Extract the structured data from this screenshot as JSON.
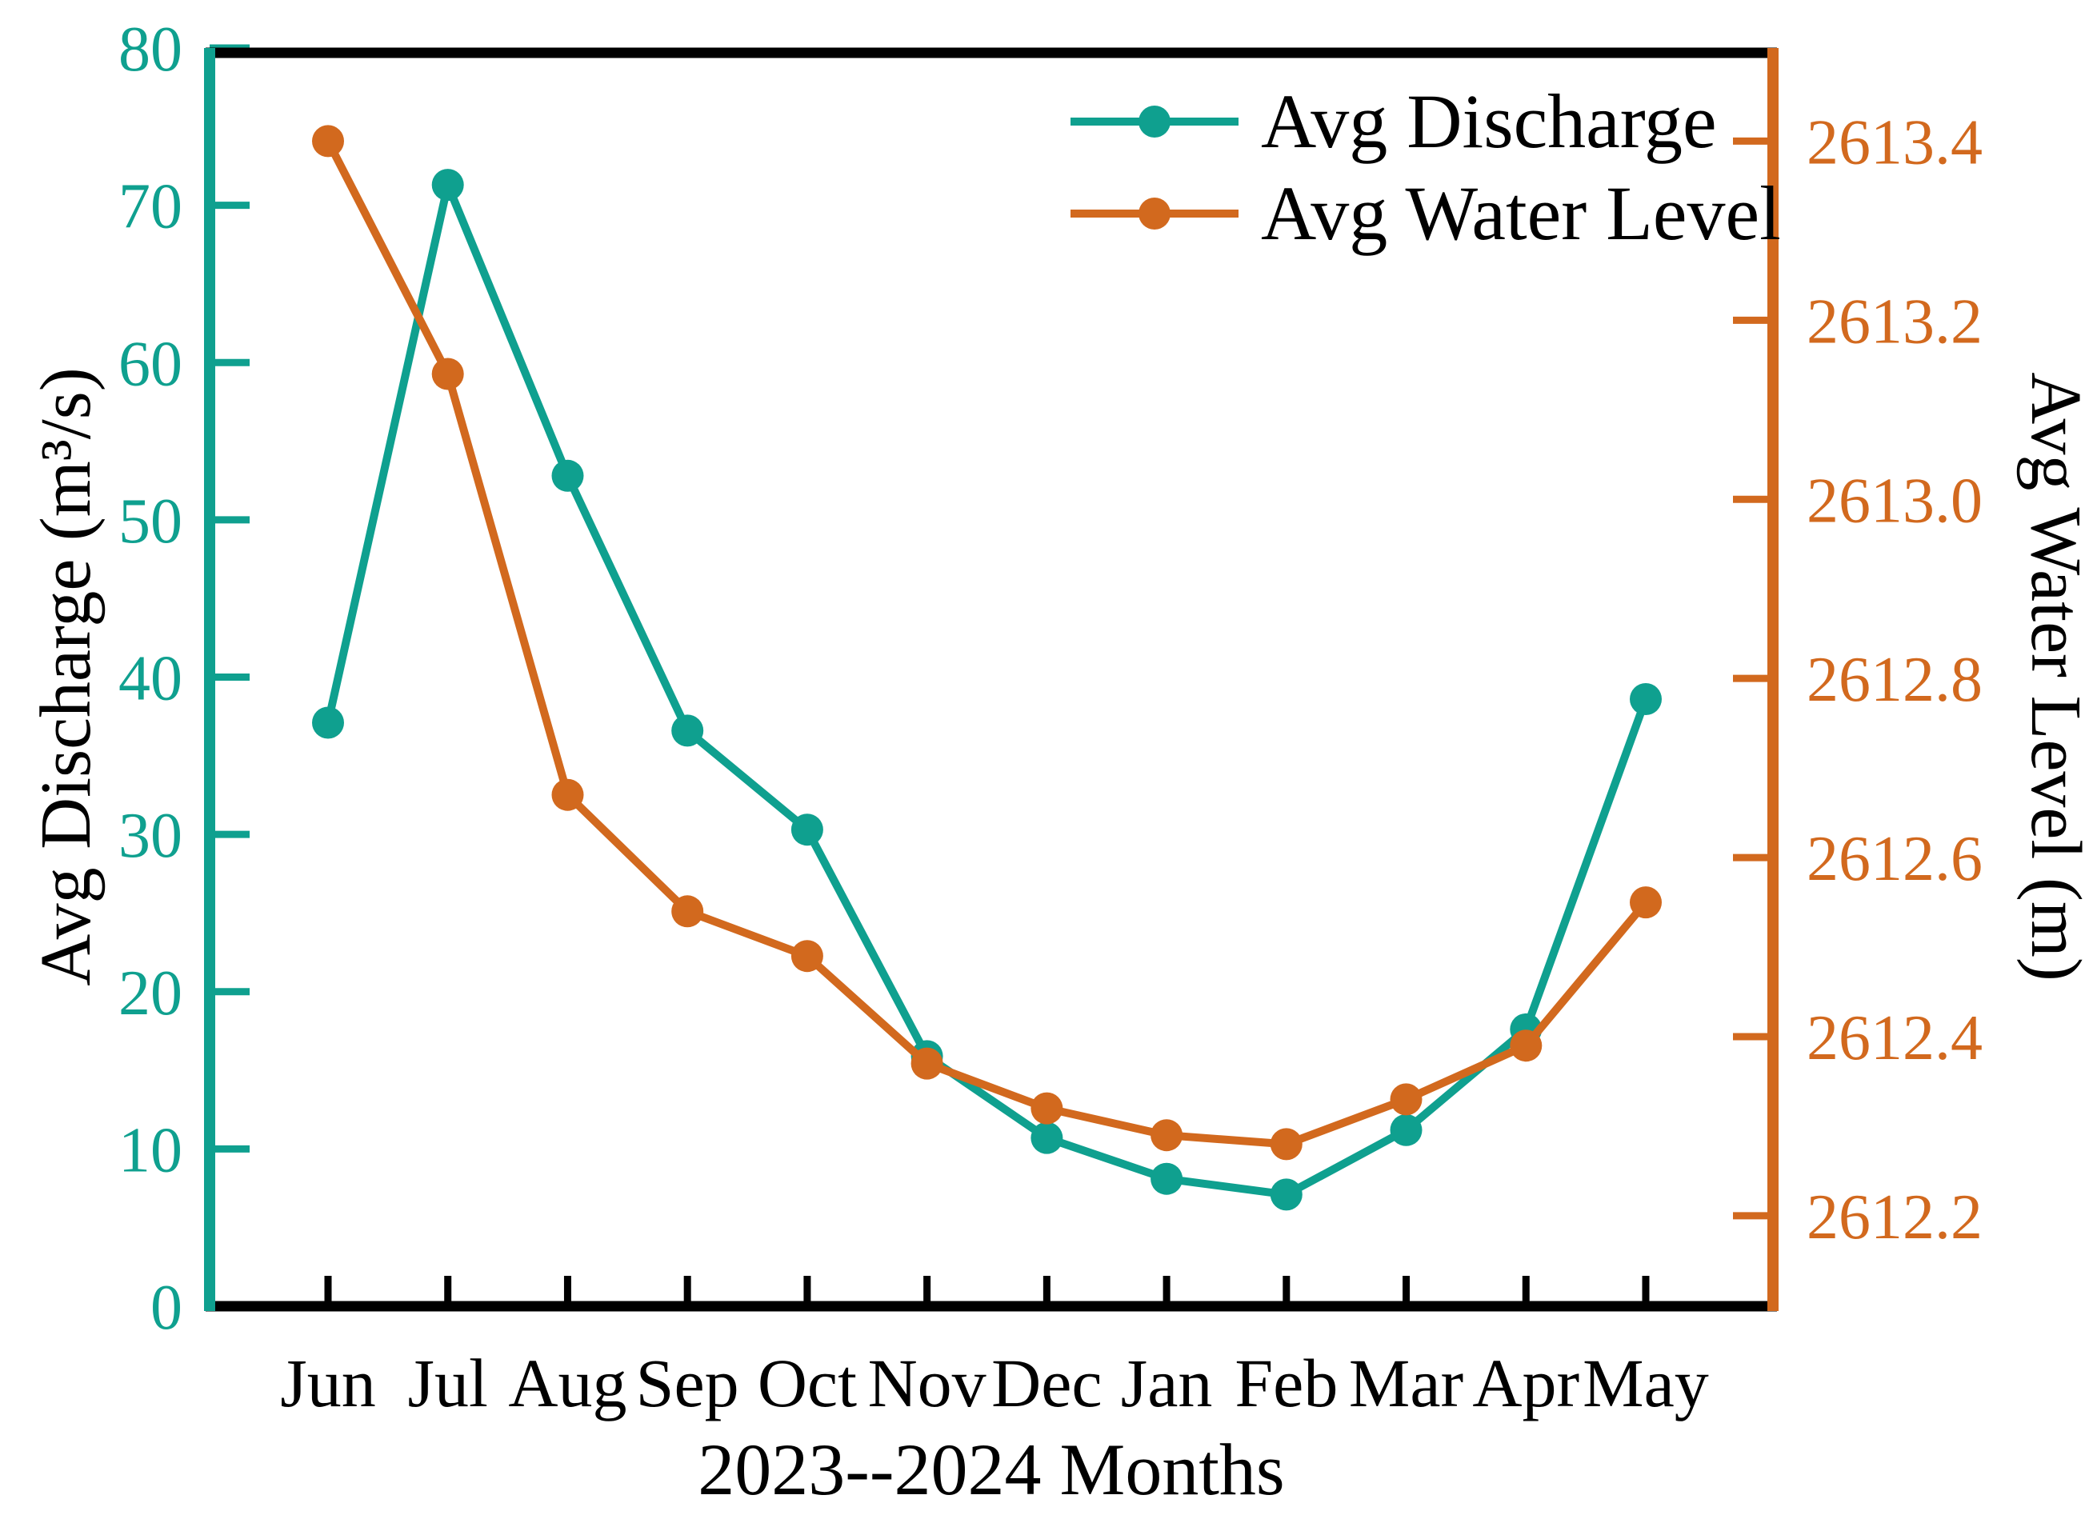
{
  "chart_data": {
    "type": "line",
    "title": "",
    "categories": [
      "Jun",
      "Jul",
      "Aug",
      "Sep",
      "Oct",
      "Nov",
      "Dec",
      "Jan",
      "Feb",
      "Mar",
      "Apr",
      "May"
    ],
    "xlabel": "2023--2024 Months",
    "ylabel_left": "Avg Discharge (m³/s)",
    "ylabel_right": "Avg Water Level (m)",
    "grid": false,
    "legend_position": "top-right-inside",
    "colors": {
      "discharge": "#0FA08F",
      "water_level": "#D2691E",
      "frame": "#000000"
    },
    "left_axis": {
      "min": 0,
      "max": 80,
      "tick_labels": [
        "0",
        "10",
        "20",
        "30",
        "40",
        "50",
        "60",
        "70",
        "80"
      ],
      "tick_values": [
        0,
        10,
        20,
        30,
        40,
        50,
        60,
        70,
        80
      ]
    },
    "right_axis": {
      "min": 2612.099,
      "max": 2613.504,
      "tick_labels": [
        "2612.2",
        "2612.4",
        "2612.6",
        "2612.8",
        "2613.0",
        "2613.2",
        "2613.4"
      ],
      "tick_values": [
        2612.2,
        2612.4,
        2612.6,
        2612.8,
        2613.0,
        2613.2,
        2613.4
      ]
    },
    "series": [
      {
        "name": "Avg Discharge",
        "axis": "left",
        "color": "#0FA08F",
        "values": [
          37.1,
          71.3,
          52.8,
          36.6,
          30.3,
          15.9,
          10.7,
          8.1,
          7.1,
          11.2,
          17.6,
          38.6
        ]
      },
      {
        "name": "Avg Water Level",
        "axis": "right",
        "color": "#D2691E",
        "values": [
          2613.4,
          2613.14,
          2612.67,
          2612.54,
          2612.49,
          2612.37,
          2612.32,
          2612.29,
          2612.28,
          2612.33,
          2612.39,
          2612.55
        ]
      }
    ]
  },
  "legend": {
    "items": [
      {
        "label": "Avg Discharge"
      },
      {
        "label": "Avg Water Level"
      }
    ]
  }
}
